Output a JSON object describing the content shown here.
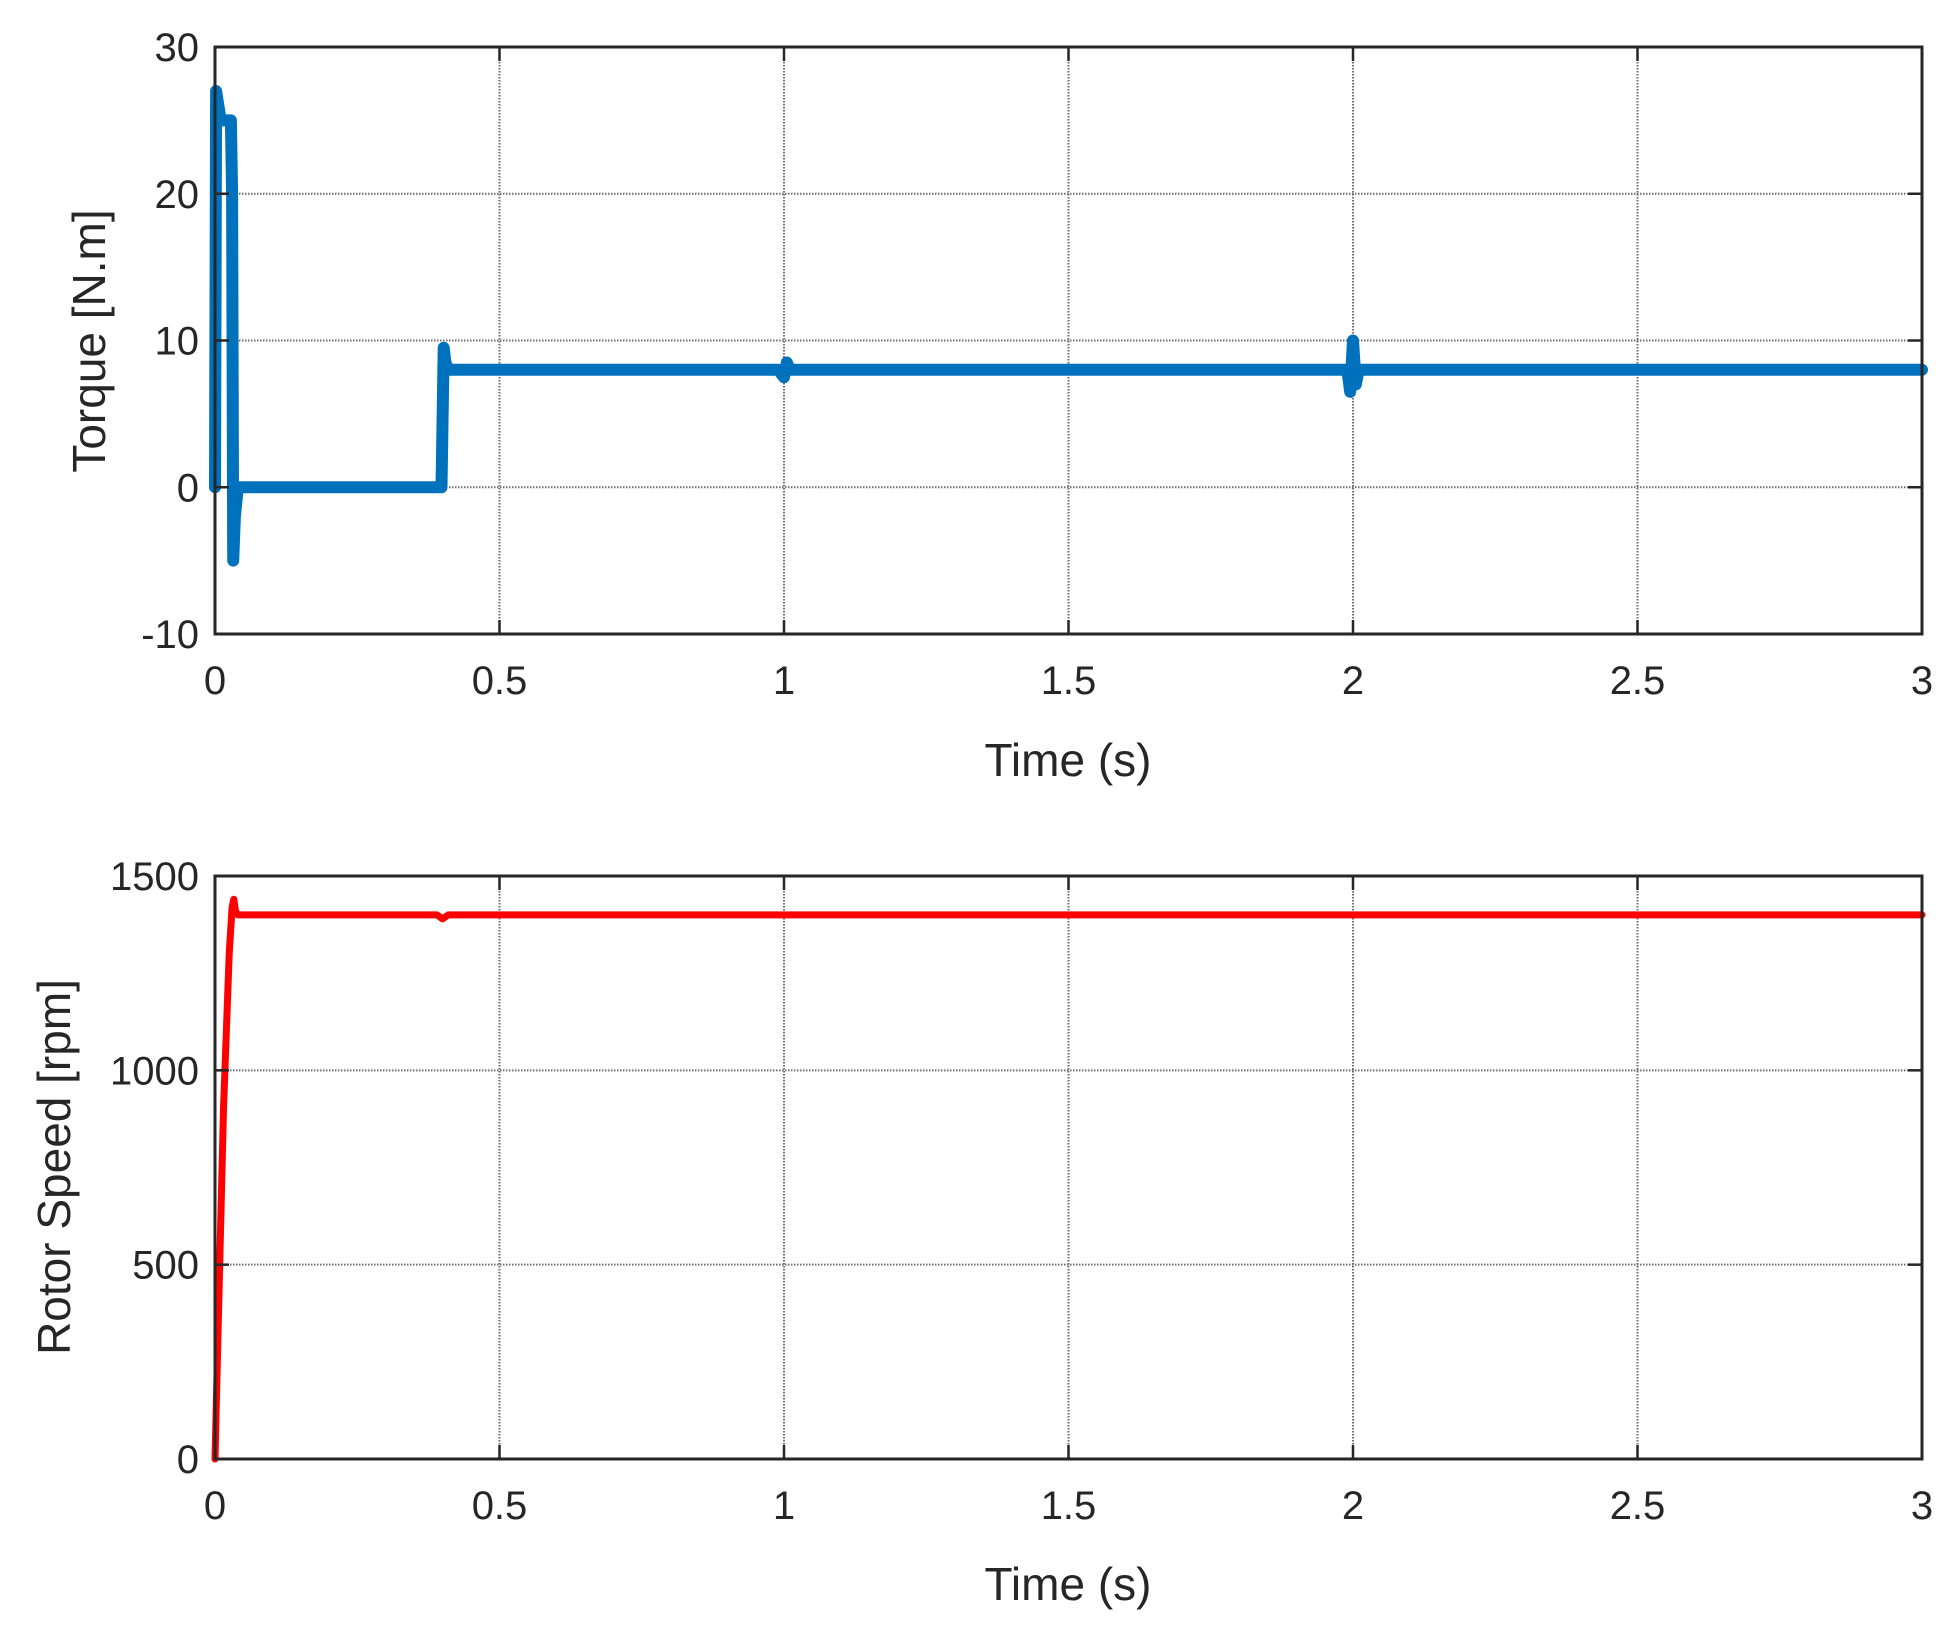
{
  "chart_data": [
    {
      "type": "line",
      "xlabel": "Time (s)",
      "ylabel": "Torque [N.m]",
      "xlim": [
        0,
        3
      ],
      "ylim": [
        -10,
        30
      ],
      "xticks": [
        0,
        0.5,
        1,
        1.5,
        2,
        2.5,
        3
      ],
      "xtick_labels": [
        "0",
        "0.5",
        "1",
        "1.5",
        "2",
        "2.5",
        "3"
      ],
      "yticks": [
        -10,
        0,
        10,
        20,
        30
      ],
      "ytick_labels": [
        "-10",
        "0",
        "10",
        "20",
        "30"
      ],
      "grid": "partial",
      "color": "#0072BD",
      "series": [
        {
          "x": [
            0,
            0.002,
            0.006,
            0.01,
            0.015,
            0.02,
            0.025,
            0.028,
            0.03,
            0.032,
            0.035,
            0.04,
            0.05,
            0.1,
            0.2,
            0.3,
            0.39,
            0.398,
            0.402,
            0.405,
            0.41,
            0.42,
            0.5,
            0.99,
            1.0,
            1.005,
            1.01,
            1.99,
            1.995,
            2.0,
            2.005,
            2.01,
            2.5,
            3.0
          ],
          "values": [
            0,
            27,
            26,
            25,
            25,
            25,
            25,
            25,
            20,
            -5,
            -2,
            0,
            0,
            0,
            0,
            0,
            0,
            0,
            9.5,
            8.5,
            8,
            8,
            8,
            8,
            7.5,
            8.5,
            8,
            8,
            6.5,
            10,
            7,
            8,
            8,
            8
          ]
        }
      ]
    },
    {
      "type": "line",
      "xlabel": "Time (s)",
      "ylabel": "Rotor Speed [rpm]",
      "xlim": [
        0,
        3
      ],
      "ylim": [
        0,
        1500
      ],
      "xticks": [
        0,
        0.5,
        1,
        1.5,
        2,
        2.5,
        3
      ],
      "xtick_labels": [
        "0",
        "0.5",
        "1",
        "1.5",
        "2",
        "2.5",
        "3"
      ],
      "yticks": [
        0,
        500,
        1000,
        1500
      ],
      "ytick_labels": [
        "0",
        "500",
        "1000",
        "1500"
      ],
      "grid": "partial",
      "color": "#FF0000",
      "series": [
        {
          "x": [
            0,
            0.005,
            0.015,
            0.025,
            0.03,
            0.033,
            0.036,
            0.04,
            0.05,
            0.39,
            0.4,
            0.41,
            0.5,
            1.0,
            2.0,
            2.5,
            3.0
          ],
          "values": [
            0,
            300,
            900,
            1300,
            1420,
            1440,
            1410,
            1400,
            1400,
            1400,
            1390,
            1400,
            1400,
            1400,
            1400,
            1400,
            1400
          ]
        }
      ]
    }
  ]
}
